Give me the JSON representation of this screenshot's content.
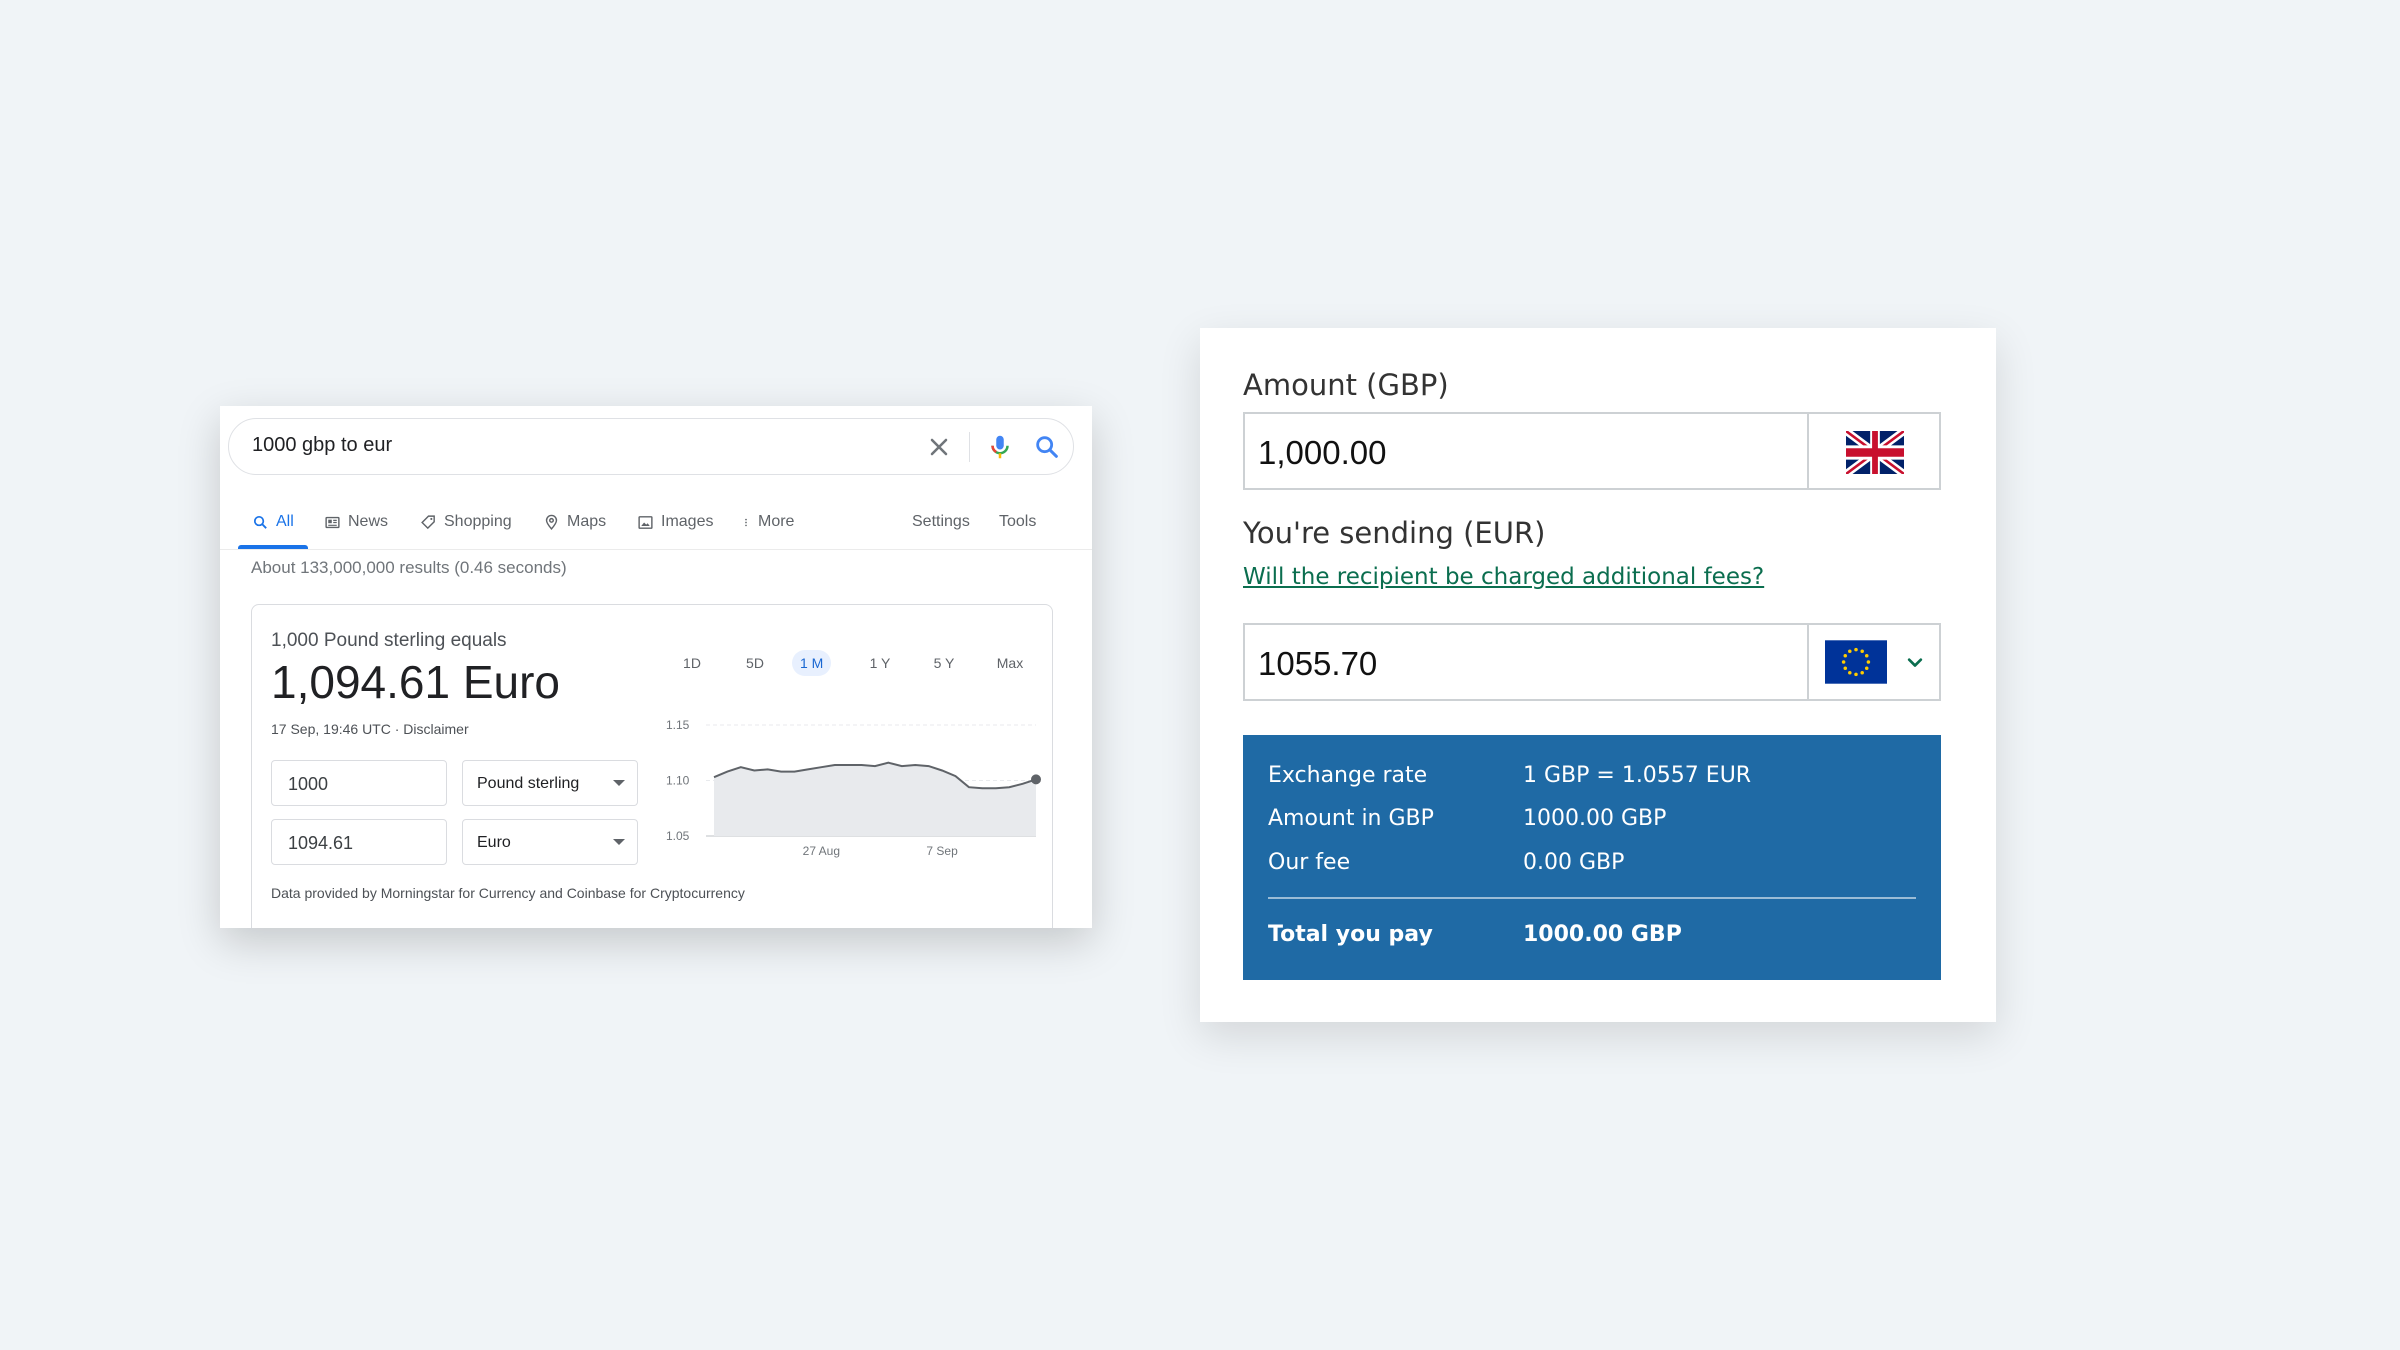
{
  "google": {
    "query": "1000 gbp to eur",
    "tabs": [
      {
        "label": "All",
        "icon": "search-icon"
      },
      {
        "label": "News",
        "icon": "news-icon"
      },
      {
        "label": "Shopping",
        "icon": "tag-icon"
      },
      {
        "label": "Maps",
        "icon": "map-pin-icon"
      },
      {
        "label": "Images",
        "icon": "image-icon"
      },
      {
        "label": "More",
        "icon": "more-vert-icon"
      }
    ],
    "settings_label": "Settings",
    "tools_label": "Tools",
    "result_stats": "About 133,000,000 results (0.46 seconds)",
    "converter": {
      "equals_text": "1,000 Pound sterling equals",
      "result": "1,094.61 Euro",
      "timestamp": "17 Sep, 19:46 UTC · Disclaimer",
      "from_amount": "1000",
      "from_currency": "Pound sterling",
      "to_amount": "1094.61",
      "to_currency": "Euro",
      "footer": "Data provided by Morningstar for Currency and Coinbase for Cryptocurrency",
      "ranges": [
        "1D",
        "5D",
        "1 M",
        "1 Y",
        "5 Y",
        "Max"
      ],
      "active_range": "1 M"
    }
  },
  "chart_data": {
    "type": "area",
    "y_ticks": [
      "1.15",
      "1.10",
      "1.05"
    ],
    "x_ticks": [
      "27 Aug",
      "7 Sep"
    ],
    "ylim": [
      1.05,
      1.15
    ],
    "values": [
      1.103,
      1.108,
      1.112,
      1.109,
      1.11,
      1.108,
      1.108,
      1.11,
      1.112,
      1.114,
      1.114,
      1.114,
      1.113,
      1.116,
      1.113,
      1.114,
      1.113,
      1.109,
      1.104,
      1.094,
      1.093,
      1.093,
      1.094,
      1.097,
      1.101
    ],
    "line_color": "#5f6368",
    "fill_color": "#e8eaed"
  },
  "transfer": {
    "amount_label": "Amount (GBP)",
    "amount_value": "1,000.00",
    "sending_label": "You're sending (EUR)",
    "fees_link": "Will the recipient be charged additional fees?",
    "sending_value": "1055.70",
    "summary": [
      {
        "key": "Exchange rate",
        "value": "1 GBP = 1.0557 EUR"
      },
      {
        "key": "Amount in GBP",
        "value": "1000.00 GBP"
      },
      {
        "key": "Our fee",
        "value": "0.00 GBP"
      }
    ],
    "total": {
      "key": "Total you pay",
      "value": "1000.00 GBP"
    },
    "colors": {
      "summary_bg": "#1f6aa5",
      "link": "#0b6e4f"
    }
  }
}
